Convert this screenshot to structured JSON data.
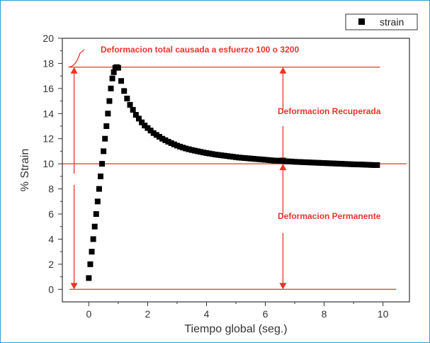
{
  "chart_data": {
    "type": "scatter",
    "xlabel": "Tiempo global (seg.)",
    "ylabel": "% Strain",
    "xlim": [
      -0.9,
      10.9
    ],
    "ylim": [
      -1,
      20
    ],
    "x_ticks": [
      0,
      2,
      4,
      6,
      8,
      10
    ],
    "y_ticks": [
      0,
      2,
      4,
      6,
      8,
      10,
      12,
      14,
      16,
      18,
      20
    ],
    "x_tick_labels": [
      "0",
      "2",
      "4",
      "6",
      "8",
      "10"
    ],
    "y_tick_labels": [
      "0",
      "2",
      "4",
      "6",
      "8",
      "10",
      "12",
      "14",
      "16",
      "18",
      "20"
    ],
    "grid": false,
    "legend_position": "top-right",
    "series": [
      {
        "name": "strain",
        "marker": "square",
        "color": "#000000",
        "x": [
          0.0,
          0.05,
          0.1,
          0.15,
          0.2,
          0.25,
          0.3,
          0.35,
          0.4,
          0.45,
          0.5,
          0.55,
          0.6,
          0.65,
          0.7,
          0.75,
          0.8,
          0.85,
          0.9,
          0.95,
          1.0,
          1.1,
          1.2,
          1.3,
          1.4,
          1.5,
          1.6,
          1.7,
          1.8,
          1.9,
          2.0,
          2.1,
          2.2,
          2.3,
          2.4,
          2.5,
          2.6,
          2.7,
          2.8,
          2.9,
          3.0,
          3.1,
          3.2,
          3.3,
          3.4,
          3.5,
          3.6,
          3.7,
          3.8,
          3.9,
          4.0,
          4.1,
          4.2,
          4.3,
          4.4,
          4.5,
          4.6,
          4.7,
          4.8,
          4.9,
          5.0,
          5.1,
          5.2,
          5.3,
          5.4,
          5.5,
          5.6,
          5.7,
          5.8,
          5.9,
          6.0,
          6.1,
          6.2,
          6.3,
          6.4,
          6.5,
          6.6,
          6.7,
          6.8,
          6.9,
          7.0,
          7.1,
          7.2,
          7.3,
          7.4,
          7.5,
          7.6,
          7.7,
          7.8,
          7.9,
          8.0,
          8.1,
          8.2,
          8.3,
          8.4,
          8.5,
          8.6,
          8.7,
          8.8,
          8.9,
          9.0,
          9.1,
          9.2,
          9.3,
          9.4,
          9.5,
          9.6,
          9.7,
          9.8
        ],
        "y": [
          0.9,
          2.0,
          3.0,
          4.0,
          5.0,
          6.0,
          7.0,
          8.0,
          9.0,
          10.0,
          11.0,
          12.0,
          13.0,
          14.0,
          15.0,
          16.0,
          16.8,
          17.3,
          17.65,
          17.7,
          17.65,
          16.6,
          15.8,
          15.2,
          14.7,
          14.3,
          13.9,
          13.6,
          13.3,
          13.05,
          12.85,
          12.65,
          12.45,
          12.3,
          12.15,
          12.0,
          11.88,
          11.76,
          11.65,
          11.55,
          11.45,
          11.37,
          11.29,
          11.22,
          11.16,
          11.1,
          11.05,
          11.0,
          10.95,
          10.9,
          10.86,
          10.82,
          10.78,
          10.74,
          10.71,
          10.68,
          10.65,
          10.62,
          10.59,
          10.56,
          10.53,
          10.5,
          10.48,
          10.46,
          10.44,
          10.42,
          10.4,
          10.38,
          10.36,
          10.34,
          10.32,
          10.3,
          10.28,
          10.26,
          10.25,
          10.24,
          10.22,
          10.2,
          10.19,
          10.18,
          10.16,
          10.15,
          10.14,
          10.13,
          10.12,
          10.11,
          10.1,
          10.09,
          10.08,
          10.07,
          10.06,
          10.05,
          10.04,
          10.03,
          10.02,
          10.01,
          10.0,
          9.99,
          9.98,
          9.97,
          9.96,
          9.95,
          9.95,
          9.94,
          9.93,
          9.92,
          9.91,
          9.9,
          9.9
        ]
      }
    ],
    "reference_lines": {
      "color": "#e8352a",
      "horizontal_y": [
        17.7,
        10.0,
        0.0
      ]
    },
    "annotations": [
      {
        "text": "Deformacion total causada a esfuerzo 100 o 3200"
      },
      {
        "text": "Deformacion Recuperada"
      },
      {
        "text": "Deformacion Permanente"
      }
    ]
  }
}
